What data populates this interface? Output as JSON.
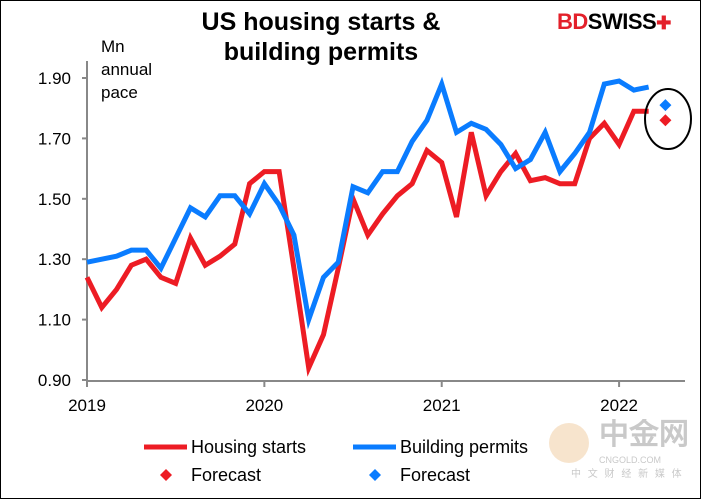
{
  "chart_data": {
    "type": "line",
    "title": "US housing starts & building permits",
    "title_lines": [
      "US housing starts &",
      "building permits"
    ],
    "ylabel_lines": [
      "Mn",
      "annual",
      "pace"
    ],
    "ylim": [
      0.9,
      1.95
    ],
    "yticks": [
      "0.90",
      "1.10",
      "1.30",
      "1.50",
      "1.70",
      "1.90"
    ],
    "xticks": [
      "2019",
      "2020",
      "2021",
      "2022"
    ],
    "x_start": "2019-01",
    "frequency": "monthly",
    "series": [
      {
        "name": "Housing starts",
        "color": "#ed1c24",
        "values": [
          1.24,
          1.14,
          1.2,
          1.28,
          1.3,
          1.24,
          1.22,
          1.37,
          1.28,
          1.31,
          1.35,
          1.55,
          1.59,
          1.59,
          1.27,
          0.94,
          1.05,
          1.27,
          1.5,
          1.38,
          1.45,
          1.51,
          1.55,
          1.66,
          1.62,
          1.44,
          1.72,
          1.51,
          1.59,
          1.65,
          1.56,
          1.57,
          1.55,
          1.55,
          1.7,
          1.75,
          1.68,
          1.79,
          1.79
        ]
      },
      {
        "name": "Building permits",
        "color": "#0a7cff",
        "values": [
          1.29,
          1.3,
          1.31,
          1.33,
          1.33,
          1.27,
          1.37,
          1.47,
          1.44,
          1.51,
          1.51,
          1.45,
          1.55,
          1.48,
          1.38,
          1.1,
          1.24,
          1.29,
          1.54,
          1.52,
          1.59,
          1.59,
          1.69,
          1.76,
          1.88,
          1.72,
          1.75,
          1.73,
          1.68,
          1.6,
          1.63,
          1.72,
          1.59,
          1.65,
          1.72,
          1.88,
          1.89,
          1.86,
          1.87
        ]
      }
    ],
    "forecasts": [
      {
        "name": "Forecast",
        "series": "Housing starts",
        "month_index": 39,
        "value": 1.76,
        "color": "#ed1c24"
      },
      {
        "name": "Forecast",
        "series": "Building permits",
        "month_index": 39,
        "value": 1.81,
        "color": "#0a7cff"
      }
    ],
    "legend": {
      "placement": "bottom",
      "items": [
        "Housing starts",
        "Building permits",
        "Forecast",
        "Forecast"
      ]
    }
  },
  "logo": {
    "part1": "BD",
    "part2": "SWISS"
  },
  "watermark": {
    "main": "中金网",
    "url": "CNGOLD.COM",
    "tagline": "中 文 财 经 新 媒 体"
  }
}
